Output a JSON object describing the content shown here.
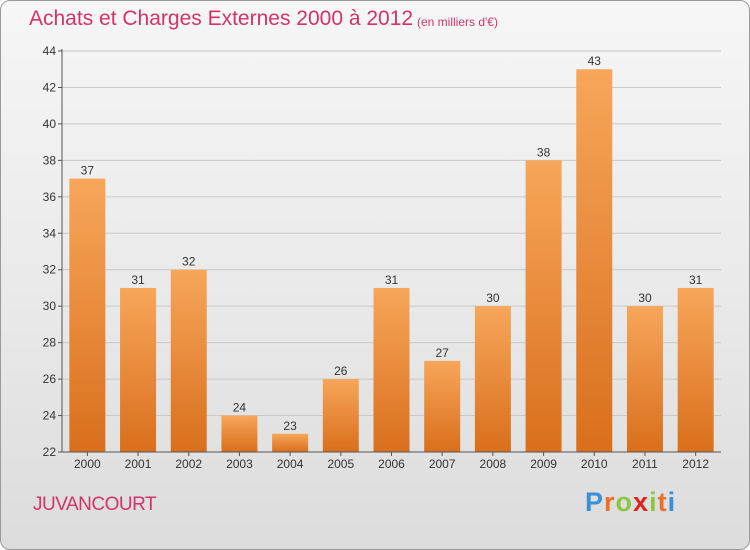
{
  "header": {
    "title": "Achats et Charges Externes 2000 à 2012",
    "unit": "(en milliers d'€)"
  },
  "footer": {
    "town": "JUVANCOURT",
    "logo": "Proxiti",
    "logo_colors": [
      "#3a8fd6",
      "#e8702a",
      "#8cc63f",
      "#e2231a",
      "#8cc63f",
      "#e8702a",
      "#3a8fd6"
    ]
  },
  "chart_data": {
    "type": "bar",
    "categories": [
      "2000",
      "2001",
      "2002",
      "2003",
      "2004",
      "2005",
      "2006",
      "2007",
      "2008",
      "2009",
      "2010",
      "2011",
      "2012"
    ],
    "values": [
      37,
      31,
      32,
      24,
      23,
      26,
      31,
      27,
      30,
      38,
      43,
      30,
      31
    ],
    "ylim": [
      22,
      44
    ],
    "yticks": [
      22,
      24,
      26,
      28,
      30,
      32,
      34,
      36,
      38,
      40,
      42,
      44
    ],
    "grid": true,
    "data_labels": true,
    "colors": {
      "bar_top": "#f7a65a",
      "bar_bottom": "#d96f1c",
      "grid": "#c8c8c8"
    }
  }
}
